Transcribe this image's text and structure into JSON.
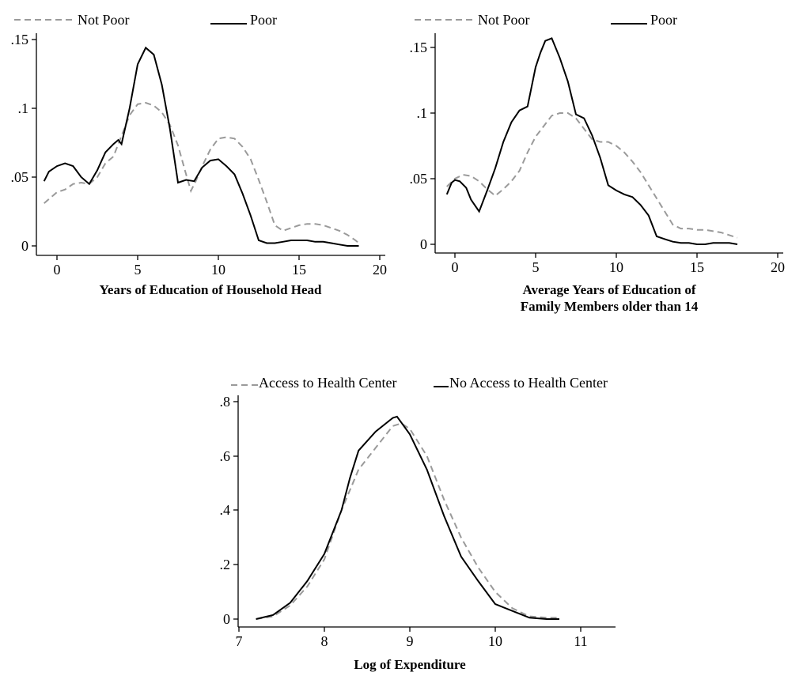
{
  "chart_data": [
    {
      "type": "line",
      "id": "panel1",
      "xlabel": "Years of Education of Household Head",
      "xlim": [
        -1,
        20
      ],
      "ylim": [
        0,
        0.155
      ],
      "xticks": [
        0,
        5,
        10,
        15,
        20
      ],
      "yticks": [
        0,
        0.05,
        0.1,
        0.15
      ],
      "ytick_labels": [
        "0",
        ".05",
        ".1",
        ".15"
      ],
      "grid": false,
      "legend_position": "top",
      "series": [
        {
          "name": "Not Poor",
          "style": "dashed",
          "color": "#9a9a9a",
          "x": [
            -0.8,
            -0.3,
            0,
            0.5,
            1,
            1.5,
            2,
            2.5,
            3,
            3.5,
            4,
            4.5,
            5,
            5.5,
            6,
            6.5,
            7,
            7.5,
            8,
            8.3,
            8.6,
            9,
            9.5,
            10,
            10.5,
            11,
            11.5,
            12,
            12.5,
            13,
            13.5,
            14,
            14.5,
            15,
            15.5,
            16,
            16.5,
            17,
            17.5,
            18,
            18.5,
            18.7
          ],
          "y": [
            0.031,
            0.036,
            0.039,
            0.041,
            0.045,
            0.046,
            0.045,
            0.05,
            0.06,
            0.065,
            0.08,
            0.095,
            0.103,
            0.104,
            0.102,
            0.097,
            0.088,
            0.073,
            0.052,
            0.04,
            0.047,
            0.058,
            0.07,
            0.078,
            0.079,
            0.078,
            0.072,
            0.063,
            0.048,
            0.032,
            0.015,
            0.011,
            0.013,
            0.015,
            0.016,
            0.016,
            0.015,
            0.013,
            0.011,
            0.008,
            0.004,
            0.002
          ]
        },
        {
          "name": "Poor",
          "style": "solid",
          "color": "#000000",
          "x": [
            -0.8,
            -0.5,
            0,
            0.5,
            1,
            1.5,
            2,
            2.5,
            3,
            3.5,
            3.8,
            4,
            4.5,
            5,
            5.5,
            6,
            6.5,
            7,
            7.5,
            8,
            8.5,
            9,
            9.5,
            10,
            10.5,
            11,
            11.5,
            12,
            12.5,
            13,
            13.5,
            14,
            14.5,
            15,
            15.5,
            16,
            16.5,
            17,
            17.5,
            18,
            18.5,
            18.7
          ],
          "y": [
            0.047,
            0.054,
            0.058,
            0.06,
            0.058,
            0.05,
            0.045,
            0.055,
            0.068,
            0.074,
            0.077,
            0.074,
            0.1,
            0.132,
            0.144,
            0.139,
            0.117,
            0.085,
            0.046,
            0.048,
            0.047,
            0.057,
            0.062,
            0.063,
            0.058,
            0.052,
            0.038,
            0.022,
            0.004,
            0.002,
            0.002,
            0.003,
            0.004,
            0.004,
            0.004,
            0.003,
            0.003,
            0.002,
            0.001,
            0.0,
            0.0,
            0.0
          ]
        }
      ]
    },
    {
      "type": "line",
      "id": "panel2",
      "xlabel": "Average Years of Education of Family Members older than 14",
      "xlabel_lines": [
        "Average Years of Education of",
        "Family Members older than 14"
      ],
      "xlim": [
        -1,
        20
      ],
      "ylim": [
        0,
        0.16
      ],
      "xticks": [
        0,
        5,
        10,
        15,
        20
      ],
      "yticks": [
        0,
        0.05,
        0.1,
        0.15
      ],
      "ytick_labels": [
        "0",
        ".05",
        ".1",
        ".15"
      ],
      "grid": false,
      "legend_position": "top",
      "series": [
        {
          "name": "Not Poor",
          "style": "dashed",
          "color": "#9a9a9a",
          "x": [
            -0.5,
            0,
            0.5,
            1,
            1.5,
            2,
            2.5,
            3,
            3.5,
            4,
            4.5,
            5,
            5.5,
            6,
            6.5,
            7,
            7.5,
            8,
            8.5,
            9,
            9.5,
            10,
            10.5,
            11,
            11.5,
            12,
            12.5,
            13,
            13.5,
            14,
            14.5,
            15,
            15.5,
            16,
            16.5,
            17,
            17.5
          ],
          "y": [
            0.044,
            0.05,
            0.053,
            0.052,
            0.048,
            0.042,
            0.037,
            0.042,
            0.048,
            0.056,
            0.07,
            0.082,
            0.09,
            0.098,
            0.1,
            0.1,
            0.096,
            0.088,
            0.08,
            0.078,
            0.078,
            0.075,
            0.07,
            0.063,
            0.055,
            0.045,
            0.035,
            0.025,
            0.015,
            0.012,
            0.012,
            0.011,
            0.011,
            0.01,
            0.009,
            0.007,
            0.005
          ]
        },
        {
          "name": "Poor",
          "style": "solid",
          "color": "#000000",
          "x": [
            -0.5,
            -0.2,
            0,
            0.3,
            0.7,
            1,
            1.5,
            2,
            2.5,
            3,
            3.5,
            4,
            4.5,
            5,
            5.3,
            5.6,
            6,
            6.5,
            7,
            7.5,
            8,
            8.5,
            9,
            9.5,
            10,
            10.5,
            11,
            11.5,
            12,
            12.5,
            13,
            13.5,
            14,
            14.5,
            15,
            15.5,
            16,
            16.5,
            17,
            17.5
          ],
          "y": [
            0.038,
            0.047,
            0.049,
            0.048,
            0.043,
            0.034,
            0.025,
            0.041,
            0.058,
            0.078,
            0.093,
            0.102,
            0.105,
            0.135,
            0.146,
            0.155,
            0.157,
            0.142,
            0.124,
            0.099,
            0.096,
            0.083,
            0.066,
            0.045,
            0.041,
            0.038,
            0.036,
            0.03,
            0.022,
            0.006,
            0.004,
            0.002,
            0.001,
            0.001,
            0.0,
            0.0,
            0.001,
            0.001,
            0.001,
            0.0
          ]
        }
      ]
    },
    {
      "type": "line",
      "id": "panel3",
      "xlabel": "Log of Expenditure",
      "xlim": [
        7,
        11.4
      ],
      "ylim": [
        0,
        0.8
      ],
      "xticks": [
        7,
        8,
        9,
        10,
        11
      ],
      "yticks": [
        0,
        0.2,
        0.4,
        0.6,
        0.8
      ],
      "ytick_labels": [
        "0",
        ".2",
        ".4",
        ".6",
        ".8"
      ],
      "grid": false,
      "legend_position": "top",
      "series": [
        {
          "name": "Access to Health Center",
          "style": "dashed",
          "color": "#9a9a9a",
          "x": [
            7.2,
            7.4,
            7.6,
            7.8,
            8.0,
            8.2,
            8.4,
            8.6,
            8.8,
            8.9,
            9.0,
            9.2,
            9.4,
            9.6,
            9.8,
            10.0,
            10.2,
            10.4,
            10.6,
            10.75
          ],
          "y": [
            0.0,
            0.01,
            0.05,
            0.12,
            0.22,
            0.4,
            0.55,
            0.63,
            0.71,
            0.72,
            0.7,
            0.6,
            0.44,
            0.3,
            0.19,
            0.1,
            0.04,
            0.01,
            0.005,
            0.005
          ]
        },
        {
          "name": "No Access to Health Center",
          "style": "solid",
          "color": "#000000",
          "x": [
            7.2,
            7.4,
            7.6,
            7.8,
            8.0,
            8.2,
            8.3,
            8.4,
            8.6,
            8.8,
            8.85,
            9.0,
            9.2,
            9.4,
            9.6,
            9.8,
            10.0,
            10.2,
            10.4,
            10.6,
            10.75
          ],
          "y": [
            0.0,
            0.015,
            0.06,
            0.14,
            0.24,
            0.4,
            0.52,
            0.62,
            0.69,
            0.74,
            0.745,
            0.68,
            0.55,
            0.38,
            0.23,
            0.14,
            0.055,
            0.03,
            0.005,
            0.0,
            0.0
          ]
        }
      ]
    }
  ]
}
